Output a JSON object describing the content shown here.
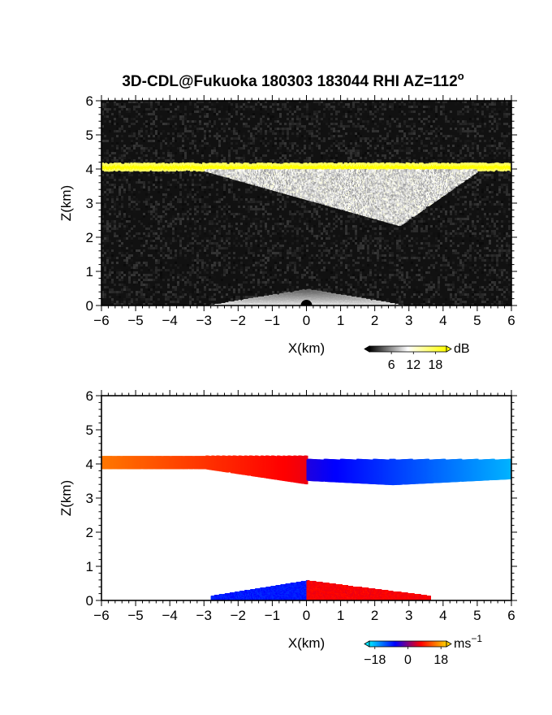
{
  "title": "3D-CDL@Fukuoka 180303 183044 RHI AZ=112",
  "title_superscript": "o",
  "chart_data": [
    {
      "type": "heatmap",
      "name": "reflectivity",
      "xlabel": "X(km)",
      "ylabel": "Z(km)",
      "xlim": [
        -6,
        6
      ],
      "ylim": [
        0,
        6
      ],
      "xticks": [
        "−6",
        "−5",
        "−4",
        "−3",
        "−2",
        "−1",
        "0",
        "1",
        "2",
        "3",
        "4",
        "5",
        "6"
      ],
      "yticks": [
        "0",
        "1",
        "2",
        "3",
        "4",
        "5",
        "6"
      ],
      "background": "#111111",
      "colorbar": {
        "unit": "dB",
        "ticks": [
          "6",
          "12",
          "18"
        ],
        "range": [
          0,
          21
        ],
        "colors": [
          "#000000",
          "#ffffff",
          "#ffff00"
        ]
      },
      "features": [
        {
          "label": "bright layer",
          "x_range": [
            -6,
            6
          ],
          "z": 4.1,
          "value_dB": 21
        },
        {
          "label": "diffuse echo",
          "x_range": [
            -3,
            5
          ],
          "z_range": [
            2.4,
            4.0
          ],
          "value_dB": 12
        },
        {
          "label": "near-ground clutter",
          "x_range": [
            -3,
            3
          ],
          "z_range": [
            0,
            0.5
          ],
          "value_dB": 10
        }
      ]
    },
    {
      "type": "heatmap",
      "name": "doppler velocity",
      "xlabel": "X(km)",
      "ylabel": "Z(km)",
      "xlim": [
        -6,
        6
      ],
      "ylim": [
        0,
        6
      ],
      "xticks": [
        "−6",
        "−5",
        "−4",
        "−3",
        "−2",
        "−1",
        "0",
        "1",
        "2",
        "3",
        "4",
        "5",
        "6"
      ],
      "yticks": [
        "0",
        "1",
        "2",
        "3",
        "4",
        "5",
        "6"
      ],
      "background": "#ffffff",
      "colorbar": {
        "unit": "ms",
        "unit_exponent": "−1",
        "ticks": [
          "−18",
          "0",
          "18"
        ],
        "range": [
          -21,
          21
        ],
        "colors": [
          "#00e5ff",
          "#0000ff",
          "#ff0000",
          "#ffd000"
        ]
      },
      "features": [
        {
          "label": "upper layer left",
          "x_range": [
            -6,
            0
          ],
          "z": 4.1,
          "velocity_ms": 15
        },
        {
          "label": "upper layer right",
          "x_range": [
            0,
            6
          ],
          "z": 4.0,
          "velocity_ms": -15
        },
        {
          "label": "low-level left",
          "x_range": [
            -2.8,
            0
          ],
          "z_range": [
            0,
            0.6
          ],
          "velocity_ms": -10
        },
        {
          "label": "low-level right",
          "x_range": [
            0,
            3.6
          ],
          "z_range": [
            0,
            0.6
          ],
          "velocity_ms": 8
        }
      ]
    }
  ]
}
